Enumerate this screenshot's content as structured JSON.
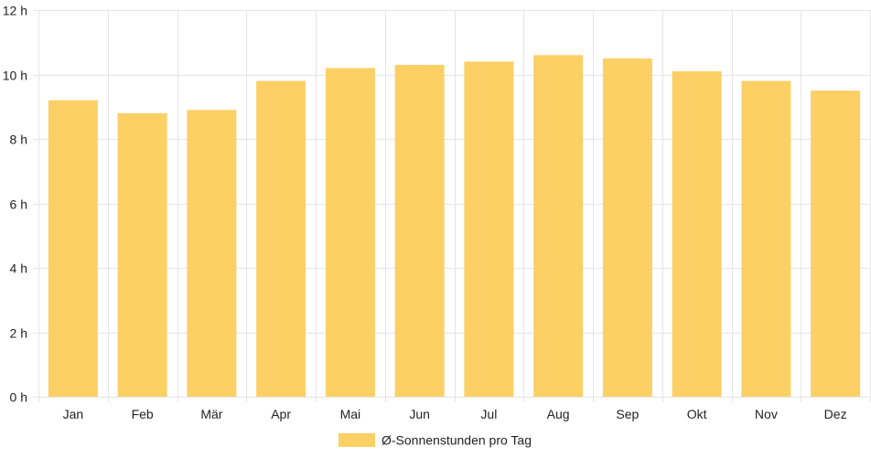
{
  "chart_data": {
    "type": "bar",
    "categories": [
      "Jan",
      "Feb",
      "Mär",
      "Apr",
      "Mai",
      "Jun",
      "Jul",
      "Aug",
      "Sep",
      "Okt",
      "Nov",
      "Dez"
    ],
    "series": [
      {
        "name": "Ø-Sonnenstunden pro Tag",
        "values": [
          9.2,
          8.8,
          8.9,
          9.8,
          10.2,
          10.3,
          10.4,
          10.6,
          10.5,
          10.1,
          9.8,
          9.5
        ],
        "color": "#fdd066"
      }
    ],
    "title": "",
    "xlabel": "",
    "ylabel": "",
    "ylim": [
      0,
      12
    ],
    "yticks": [
      0,
      2,
      4,
      6,
      8,
      10,
      12
    ],
    "ytick_labels": [
      "0 h",
      "2 h",
      "4 h",
      "6 h",
      "8 h",
      "10 h",
      "12 h"
    ],
    "grid": true,
    "legend_position": "bottom"
  }
}
